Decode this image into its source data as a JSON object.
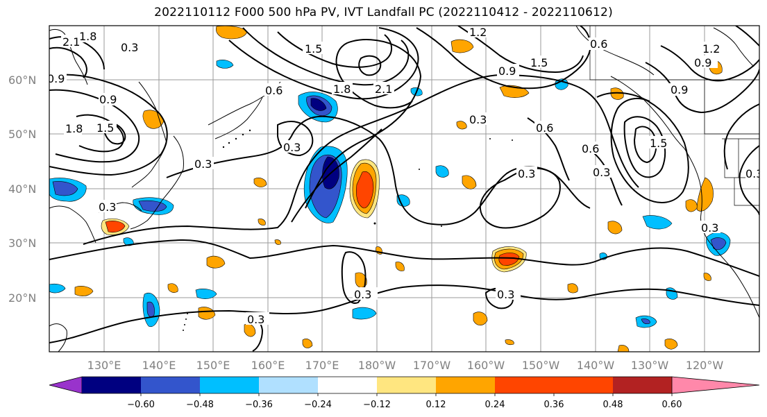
{
  "title": "2022110112 F000 500 hPa PV, IVT Landfall PC (2022110412 - 2022110612)",
  "latitude_labels": [
    "60°N",
    "50°N",
    "40°N",
    "30°N",
    "20°N"
  ],
  "longitude_labels": [
    "130°E",
    "140°E",
    "150°E",
    "160°E",
    "170°E",
    "180°W",
    "170°W",
    "160°W",
    "150°W",
    "140°W",
    "130°W",
    "120°W"
  ],
  "contour_labels": [
    "2.1",
    "1.8",
    "1.5",
    "1.2",
    "0.9",
    "0.6",
    "0.3"
  ],
  "colorbar": {
    "ticks": [
      "−0.60",
      "−0.48",
      "−0.36",
      "−0.24",
      "−0.12",
      "0.12",
      "0.24",
      "0.36",
      "0.48",
      "0.60"
    ],
    "colors": [
      "#9933cc",
      "#000080",
      "#3355cc",
      "#00bfff",
      "#b0e0ff",
      "#ffffff",
      "#ffe680",
      "#ffa500",
      "#ff4500",
      "#b22222",
      "#ff88aa"
    ]
  }
}
